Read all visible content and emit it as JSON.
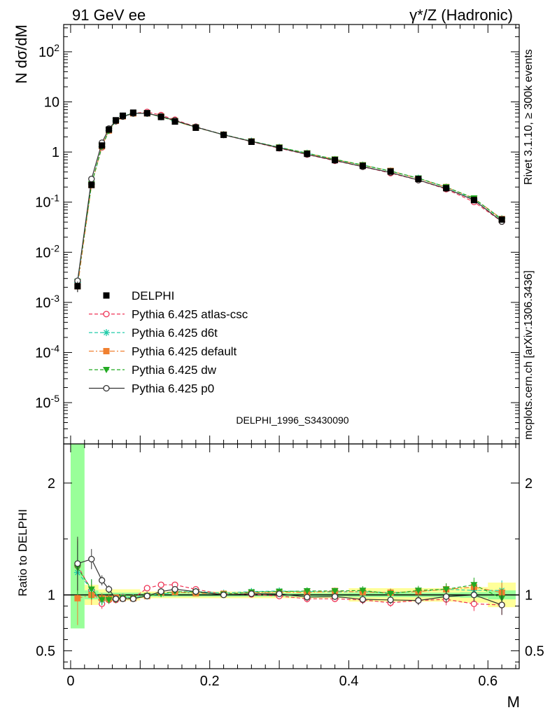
{
  "header": {
    "left_title": "91 GeV ee",
    "right_title": "γ*/Z (Hadronic)"
  },
  "side_labels": {
    "rivet": "Rivet 3.1.10, ≥ 300k events",
    "source": "mcplots.cern.ch [arXiv:1306.3436]"
  },
  "watermark": "DELPHI_1996_S3430090",
  "legend": {
    "entries": [
      {
        "label": "DELPHI",
        "color": "#000000",
        "marker": "square-filled",
        "line": "none"
      },
      {
        "label": "Pythia 6.425 atlas-csc",
        "color": "#ee3355",
        "marker": "circle-open",
        "line": "dashed"
      },
      {
        "label": "Pythia 6.425 d6t",
        "color": "#22ccaa",
        "marker": "asterisk",
        "line": "dashed"
      },
      {
        "label": "Pythia 6.425 default",
        "color": "#f08030",
        "marker": "square-filled",
        "line": "dashdot"
      },
      {
        "label": "Pythia 6.425 dw",
        "color": "#22aa22",
        "marker": "triangle-down-filled",
        "line": "dashed"
      },
      {
        "label": "Pythia 6.425 p0",
        "color": "#333333",
        "marker": "circle-open",
        "line": "solid"
      }
    ]
  },
  "chart_data": [
    {
      "type": "line",
      "title": "",
      "xlabel": "M",
      "ylabel": "N dσ/dM",
      "yscale": "log",
      "xlim": [
        -0.01,
        0.645
      ],
      "ylim": [
        1.5e-06,
        350
      ],
      "y_tick_labels": [
        "10^-5",
        "10^-4",
        "10^-3",
        "10^-2",
        "10^-1",
        "1",
        "10",
        "10^2"
      ],
      "x": [
        0.01,
        0.03,
        0.045,
        0.055,
        0.065,
        0.075,
        0.09,
        0.11,
        0.13,
        0.15,
        0.18,
        0.22,
        0.26,
        0.3,
        0.34,
        0.38,
        0.42,
        0.46,
        0.5,
        0.54,
        0.58,
        0.62
      ],
      "data": {
        "name": "DELPHI",
        "values": [
          0.0021,
          0.22,
          1.35,
          2.8,
          4.3,
          5.3,
          6.1,
          5.95,
          5.0,
          4.05,
          3.05,
          2.2,
          1.6,
          1.2,
          0.92,
          0.69,
          0.53,
          0.41,
          0.29,
          0.19,
          0.11,
          0.045
        ],
        "errors": [
          0.0005,
          0.02,
          0.06,
          0.1,
          0.12,
          0.13,
          0.14,
          0.13,
          0.11,
          0.09,
          0.07,
          0.05,
          0.04,
          0.03,
          0.03,
          0.02,
          0.02,
          0.015,
          0.012,
          0.01,
          0.007,
          0.004
        ]
      },
      "series": [
        {
          "name": "Pythia 6.425 atlas-csc",
          "values": [
            0.0026,
            0.23,
            1.24,
            2.67,
            4.1,
            5.2,
            5.9,
            6.3,
            5.45,
            4.4,
            3.2,
            2.21,
            1.61,
            1.19,
            0.89,
            0.67,
            0.51,
            0.38,
            0.275,
            0.182,
            0.101,
            0.041
          ]
        },
        {
          "name": "Pythia 6.425 d6t",
          "values": [
            0.0025,
            0.23,
            1.28,
            2.68,
            4.15,
            5.2,
            5.95,
            5.92,
            5.05,
            4.14,
            3.15,
            2.23,
            1.65,
            1.24,
            0.95,
            0.71,
            0.55,
            0.42,
            0.3,
            0.2,
            0.115,
            0.047
          ]
        },
        {
          "name": "Pythia 6.425 default",
          "values": [
            0.0021,
            0.22,
            1.31,
            2.7,
            4.2,
            5.15,
            5.9,
            5.9,
            5.1,
            4.15,
            3.1,
            2.22,
            1.63,
            1.23,
            0.94,
            0.71,
            0.545,
            0.42,
            0.295,
            0.2,
            0.118,
            0.046
          ]
        },
        {
          "name": "Pythia 6.425 dw",
          "values": [
            0.0026,
            0.23,
            1.29,
            2.67,
            4.1,
            5.15,
            5.92,
            5.9,
            5.05,
            4.17,
            3.12,
            2.21,
            1.64,
            1.24,
            0.95,
            0.715,
            0.55,
            0.415,
            0.3,
            0.2,
            0.12,
            0.044
          ]
        },
        {
          "name": "Pythia 6.425 p0",
          "values": [
            0.0027,
            0.29,
            1.53,
            2.93,
            4.15,
            5.1,
            5.9,
            5.9,
            5.15,
            4.25,
            3.15,
            2.2,
            1.62,
            1.21,
            0.9,
            0.68,
            0.51,
            0.39,
            0.275,
            0.187,
            0.11,
            0.041
          ]
        }
      ]
    },
    {
      "type": "line",
      "title": "",
      "xlabel": "M",
      "ylabel": "Ratio to DELPHI",
      "xlim": [
        -0.01,
        0.645
      ],
      "ylim": [
        0.34,
        2.35
      ],
      "y_ticks": [
        0.5,
        1,
        2
      ],
      "x_ticks": [
        0,
        0.2,
        0.4,
        0.6
      ],
      "reference": 1,
      "x": [
        0.01,
        0.03,
        0.045,
        0.055,
        0.065,
        0.075,
        0.09,
        0.11,
        0.13,
        0.15,
        0.18,
        0.22,
        0.26,
        0.3,
        0.34,
        0.38,
        0.42,
        0.46,
        0.5,
        0.54,
        0.58,
        0.62
      ],
      "band_inner": [
        [
          0.0,
          0.02,
          0.7,
          2.35
        ],
        [
          0.02,
          0.04,
          0.96,
          1.04
        ],
        [
          0.04,
          0.1,
          0.98,
          1.02
        ],
        [
          0.1,
          0.4,
          0.985,
          1.015
        ],
        [
          0.4,
          0.56,
          0.98,
          1.02
        ],
        [
          0.56,
          0.6,
          0.975,
          1.025
        ],
        [
          0.6,
          0.64,
          0.96,
          1.04
        ]
      ],
      "band_outer": [
        [
          0.02,
          0.04,
          0.91,
          1.09
        ],
        [
          0.04,
          0.1,
          0.95,
          1.05
        ],
        [
          0.1,
          0.4,
          0.97,
          1.03
        ],
        [
          0.4,
          0.56,
          0.94,
          1.06
        ],
        [
          0.56,
          0.6,
          0.93,
          1.07
        ],
        [
          0.6,
          0.64,
          0.89,
          1.11
        ]
      ],
      "series": [
        {
          "name": "Pythia 6.425 atlas-csc",
          "values": [
            1.26,
            1.04,
            0.92,
            0.955,
            0.955,
            0.98,
            0.97,
            1.06,
            1.09,
            1.09,
            1.05,
            1.005,
            1.005,
            0.99,
            0.965,
            0.965,
            0.955,
            0.93,
            0.95,
            0.96,
            0.92,
            0.91
          ]
        },
        {
          "name": "Pythia 6.425 d6t",
          "values": [
            1.2,
            1.05,
            0.95,
            0.96,
            0.965,
            0.98,
            0.975,
            0.995,
            1.01,
            1.02,
            1.03,
            1.015,
            1.03,
            1.035,
            1.03,
            1.025,
            1.03,
            1.02,
            1.03,
            1.05,
            1.04,
            1.04
          ]
        },
        {
          "name": "Pythia 6.425 default",
          "values": [
            0.97,
            1.0,
            0.97,
            0.965,
            0.975,
            0.97,
            0.97,
            0.99,
            1.02,
            1.025,
            1.015,
            1.01,
            1.02,
            1.025,
            1.02,
            1.035,
            1.025,
            1.02,
            1.03,
            1.05,
            1.07,
            1.02
          ]
        },
        {
          "name": "Pythia 6.425 dw",
          "values": [
            1.24,
            1.05,
            0.955,
            0.955,
            0.955,
            0.975,
            0.97,
            0.99,
            1.01,
            1.03,
            1.025,
            1.005,
            1.025,
            1.03,
            1.035,
            1.035,
            1.04,
            1.01,
            1.04,
            1.05,
            1.09,
            0.97
          ]
        },
        {
          "name": "Pythia 6.425 p0",
          "values": [
            1.28,
            1.32,
            1.13,
            1.05,
            0.965,
            0.965,
            0.965,
            0.99,
            1.03,
            1.05,
            1.03,
            1.0,
            1.01,
            1.01,
            0.98,
            0.985,
            0.96,
            0.955,
            0.95,
            0.985,
            1.0,
            0.91
          ]
        }
      ],
      "ratio_errors": [
        0.24,
        0.09,
        0.045,
        0.036,
        0.028,
        0.025,
        0.023,
        0.022,
        0.022,
        0.022,
        0.023,
        0.023,
        0.025,
        0.025,
        0.033,
        0.029,
        0.038,
        0.037,
        0.041,
        0.053,
        0.064,
        0.089
      ]
    }
  ]
}
